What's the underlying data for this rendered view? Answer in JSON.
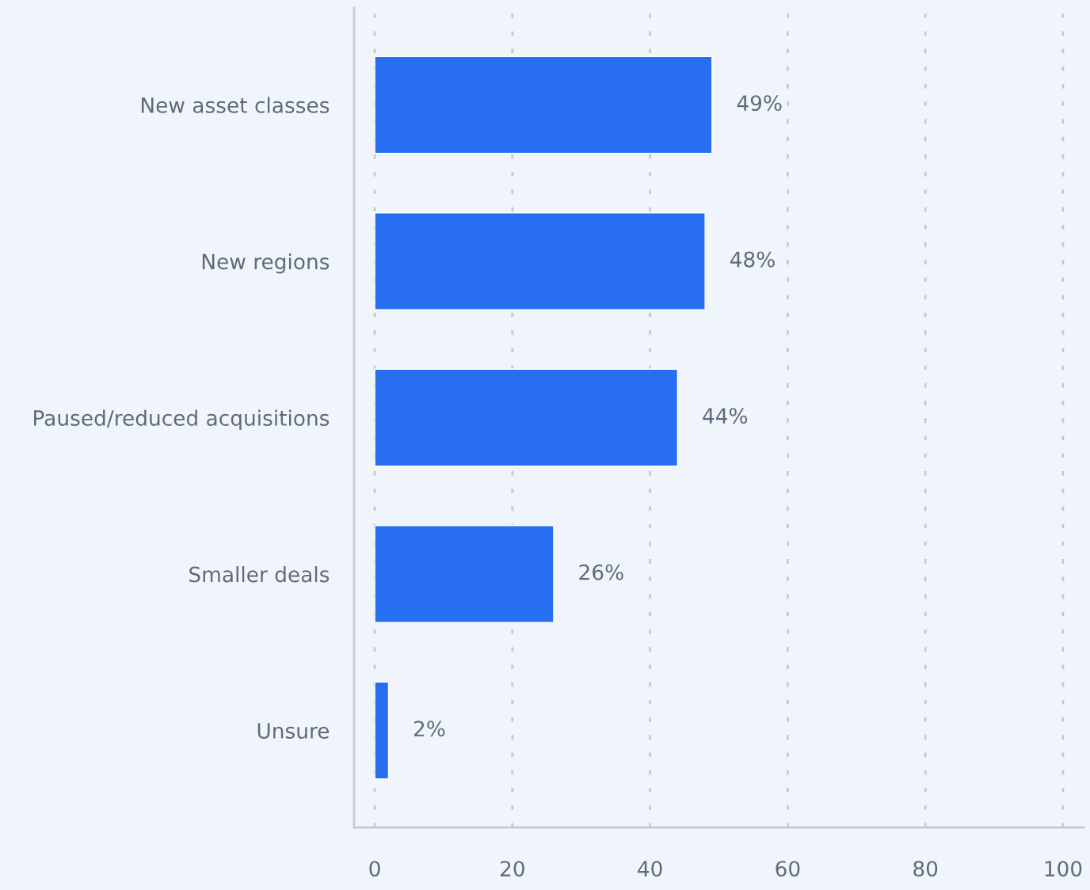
{
  "chart_data": {
    "type": "bar",
    "orientation": "horizontal",
    "categories": [
      "New asset classes",
      "New regions",
      "Paused/reduced acquisitions",
      "Smaller deals",
      "Unsure"
    ],
    "values": [
      49,
      48,
      44,
      26,
      2
    ],
    "color": "#276ef1",
    "value_labels": [
      "49%",
      "48%",
      "44%",
      "26%",
      "2%"
    ],
    "xlim": [
      -3,
      103
    ],
    "xticks": [
      0,
      20,
      40,
      60,
      80,
      100
    ],
    "grid": "x",
    "legend": false
  }
}
